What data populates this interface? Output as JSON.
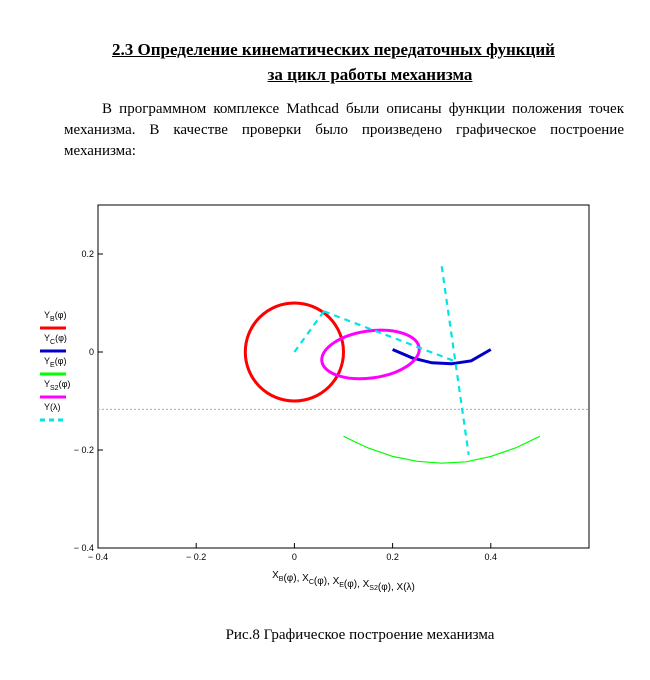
{
  "document": {
    "heading_line1": "2.3 Определение кинематических передаточных функций",
    "heading_line2": "за цикл работы механизма",
    "paragraph": "В программном комплексе Mathcad были описаны функции положения точек механизма. В качестве проверки было произведено графическое построение механизма:",
    "caption": "Рис.8 Графическое построение механизма"
  },
  "chart_data": {
    "type": "line",
    "xlim": [
      -0.4,
      0.6
    ],
    "ylim": [
      -0.4,
      0.3
    ],
    "x_ticks": [
      "-0.4",
      "-0.2",
      "0",
      "0.2",
      "0.4"
    ],
    "y_ticks": [
      "0.2",
      "0",
      "-0.2",
      "-0.4"
    ],
    "x_tick_values": [
      -0.4,
      -0.2,
      0,
      0.2,
      0.4
    ],
    "y_tick_values": [
      0.2,
      0,
      -0.2,
      -0.4
    ],
    "xlabel": "X_B(φ), X_C(φ), X_E(φ), X_S2(φ), X(λ)",
    "ylabel_legend": [
      "Y_B(φ)",
      "Y_C(φ)",
      "Y_E(φ)",
      "Y_S2(φ)",
      "Y(λ)"
    ],
    "marker_line_y": -0.117,
    "series": [
      {
        "name": "Y_B(φ)",
        "color": "#ff0000",
        "style": "solid",
        "kind": "circle",
        "center": [
          0,
          0
        ],
        "radius": 0.1
      },
      {
        "name": "Y_C(φ)",
        "color": "#0000c8",
        "style": "solid",
        "kind": "arc",
        "points": [
          [
            0.2,
            0.005
          ],
          [
            0.24,
            -0.012
          ],
          [
            0.28,
            -0.022
          ],
          [
            0.32,
            -0.024
          ],
          [
            0.36,
            -0.018
          ],
          [
            0.4,
            0.005
          ]
        ]
      },
      {
        "name": "Y_E(φ)",
        "color": "#00ff00",
        "style": "solid",
        "kind": "arc",
        "points": [
          [
            0.1,
            -0.172
          ],
          [
            0.15,
            -0.196
          ],
          [
            0.2,
            -0.213
          ],
          [
            0.25,
            -0.223
          ],
          [
            0.3,
            -0.227
          ],
          [
            0.35,
            -0.224
          ],
          [
            0.4,
            -0.213
          ],
          [
            0.45,
            -0.196
          ],
          [
            0.5,
            -0.172
          ]
        ]
      },
      {
        "name": "Y_S2(φ)",
        "color": "#ff00ff",
        "style": "solid",
        "kind": "ellipse",
        "center": [
          0.155,
          -0.005
        ],
        "rx": 0.1,
        "ry": 0.048,
        "rotation_deg": -8
      },
      {
        "name": "Y(λ)",
        "color": "#00e5e5",
        "style": "dashed",
        "kind": "polyline",
        "segments": [
          [
            [
              0,
              0
            ],
            [
              0.06,
              0.083
            ]
          ],
          [
            [
              0.06,
              0.083
            ],
            [
              0.33,
              -0.02
            ]
          ],
          [
            [
              0.3,
              0.175
            ],
            [
              0.355,
              -0.21
            ]
          ]
        ]
      }
    ]
  }
}
